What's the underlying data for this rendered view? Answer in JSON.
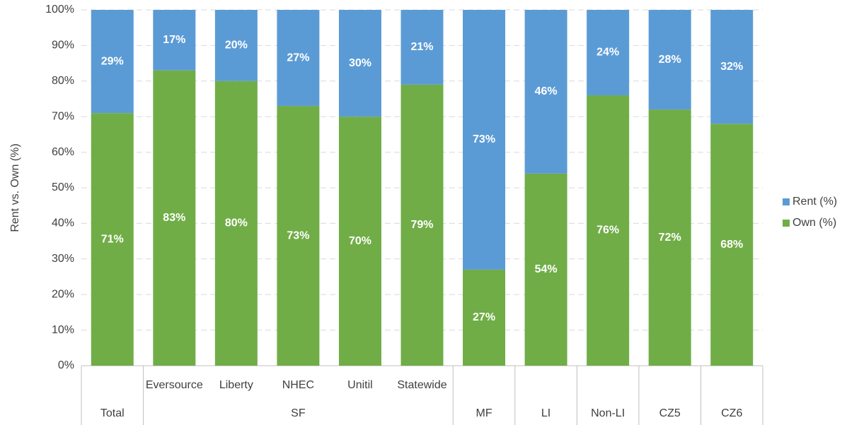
{
  "chart_data": {
    "type": "stacked_bar",
    "y_axis_label": "Rent vs. Own (%)",
    "categories": [
      null,
      "Eversource",
      "Liberty",
      "NHEC",
      "Unitil",
      "Statewide",
      null,
      null,
      null,
      null,
      null
    ],
    "groups": [
      {
        "label": "Total",
        "span": 1
      },
      {
        "label": "SF",
        "span": 5
      },
      {
        "label": "MF",
        "span": 1
      },
      {
        "label": "LI",
        "span": 1
      },
      {
        "label": "Non-LI",
        "span": 1
      },
      {
        "label": "CZ5",
        "span": 1
      },
      {
        "label": "CZ6",
        "span": 1
      }
    ],
    "series": [
      {
        "name": "Own (%)",
        "color": "#70ad47",
        "values": [
          71,
          83,
          80,
          73,
          70,
          79,
          27,
          54,
          76,
          72,
          68
        ],
        "value_labels": [
          "71%",
          "83%",
          "80%",
          "73%",
          "70%",
          "79%",
          "27%",
          "54%",
          "76%",
          "72%",
          "68%"
        ]
      },
      {
        "name": "Rent (%)",
        "color": "#5b9bd5",
        "values": [
          29,
          17,
          20,
          27,
          30,
          21,
          73,
          46,
          24,
          28,
          32
        ],
        "value_labels": [
          "29%",
          "17%",
          "20%",
          "27%",
          "30%",
          "21%",
          "73%",
          "46%",
          "24%",
          "28%",
          "32%"
        ]
      }
    ],
    "ylim": [
      0,
      100
    ],
    "yticks": [
      {
        "value": 0,
        "label": "0%"
      },
      {
        "value": 10,
        "label": "10%"
      },
      {
        "value": 20,
        "label": "20%"
      },
      {
        "value": 30,
        "label": "30%"
      },
      {
        "value": 40,
        "label": "40%"
      },
      {
        "value": 50,
        "label": "50%"
      },
      {
        "value": 60,
        "label": "60%"
      },
      {
        "value": 70,
        "label": "70%"
      },
      {
        "value": 80,
        "label": "80%"
      },
      {
        "value": 90,
        "label": "90%"
      },
      {
        "value": 100,
        "label": "100%"
      }
    ],
    "grid": true,
    "legend": "right"
  }
}
